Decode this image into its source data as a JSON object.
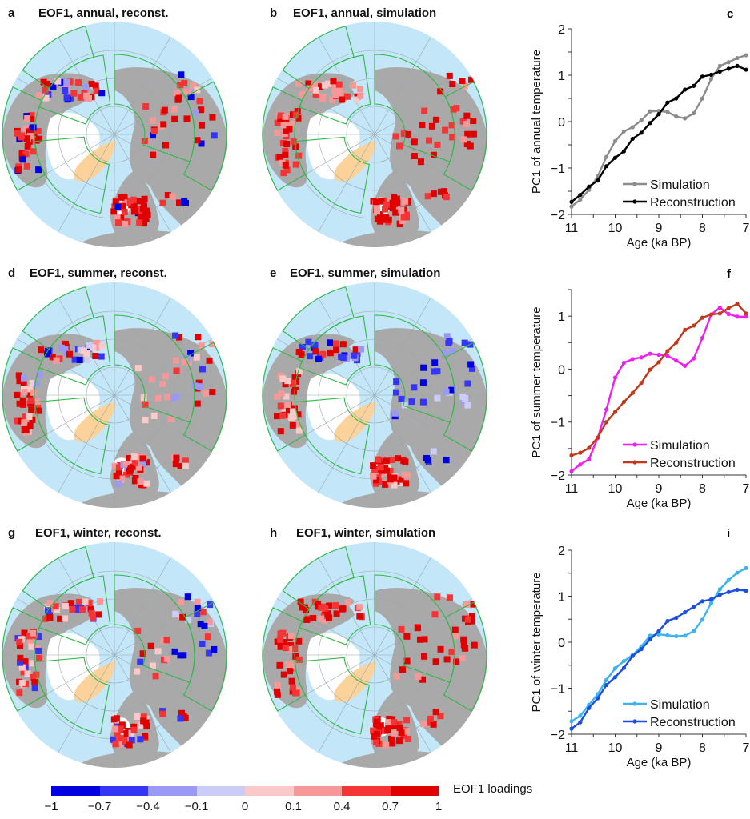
{
  "maps": [
    {
      "letter": "a",
      "title": "EOF1, annual, reconst.",
      "scheme": "annual_reconst"
    },
    {
      "letter": "b",
      "title": "EOF1, annual, simulation",
      "scheme": "annual_sim"
    },
    {
      "letter": "d",
      "title": "EOF1, summer, reconst.",
      "scheme": "summer_reconst"
    },
    {
      "letter": "e",
      "title": "EOF1, summer, simulation",
      "scheme": "summer_sim"
    },
    {
      "letter": "g",
      "title": "EOF1, winter, reconst.",
      "scheme": "winter_reconst"
    },
    {
      "letter": "h",
      "title": "EOF1, winter, simulation",
      "scheme": "winter_sim"
    }
  ],
  "map_colors": {
    "ocean": "#c3e6f8",
    "land": "#a9a9a9",
    "ice": "#ffffff",
    "ice_orange": "#fbd39a",
    "sector_outline": "#2fb844",
    "graticule": "#9aa7ae"
  },
  "colorbar": {
    "label": "EOF1 loadings",
    "ticks": [
      "−1",
      "−0.7",
      "−0.4",
      "−0.1",
      "0",
      "0.1",
      "0.4",
      "0.7",
      "1"
    ],
    "colors": [
      "#0000e0",
      "#3535f5",
      "#9a9af5",
      "#ccccf8",
      "#fbc9c9",
      "#f79898",
      "#f53535",
      "#e10000"
    ]
  },
  "chart_data": [
    {
      "letter": "c",
      "type": "line",
      "title": "",
      "xlabel": "Age (ka BP)",
      "ylabel": "PC1 of annual temperature",
      "xlim": [
        11,
        7
      ],
      "ylim": [
        -2,
        2
      ],
      "xticks": [
        "11",
        "10",
        "9",
        "8",
        "7"
      ],
      "yticks": [
        "−2",
        "−1",
        "0",
        "1",
        "2"
      ],
      "ytick_values": [
        -2,
        -1,
        0,
        1,
        2
      ],
      "legend": "bottom-right",
      "x": [
        11,
        10.8,
        10.6,
        10.4,
        10.2,
        10,
        9.8,
        9.6,
        9.4,
        9.2,
        9,
        8.8,
        8.6,
        8.4,
        8.2,
        8,
        7.8,
        7.6,
        7.4,
        7.2,
        7
      ],
      "series": [
        {
          "name": "Simulation",
          "color": "#8c8c8c",
          "values": [
            -1.83,
            -1.68,
            -1.47,
            -1.18,
            -0.76,
            -0.42,
            -0.21,
            -0.12,
            0.03,
            0.22,
            0.23,
            0.21,
            0.11,
            0.07,
            0.18,
            0.5,
            0.92,
            1.2,
            1.28,
            1.37,
            1.43
          ]
        },
        {
          "name": "Reconstruction",
          "color": "#000000",
          "values": [
            -1.73,
            -1.58,
            -1.4,
            -1.27,
            -0.96,
            -0.78,
            -0.64,
            -0.37,
            -0.24,
            -0.03,
            0.16,
            0.41,
            0.5,
            0.69,
            0.77,
            0.97,
            1.01,
            1.08,
            1.14,
            1.2,
            1.12
          ]
        }
      ]
    },
    {
      "letter": "f",
      "type": "line",
      "title": "",
      "xlabel": "Age (ka BP)",
      "ylabel": "PC1 of summer temperature",
      "xlim": [
        11,
        7
      ],
      "ylim": [
        -2,
        1.5
      ],
      "xticks": [
        "11",
        "10",
        "9",
        "8",
        "7"
      ],
      "yticks": [
        "−2",
        "−1",
        "0",
        "1"
      ],
      "ytick_values": [
        -2,
        -1,
        0,
        1
      ],
      "legend": "bottom-right",
      "x": [
        11,
        10.8,
        10.6,
        10.4,
        10.2,
        10,
        9.8,
        9.6,
        9.4,
        9.2,
        9,
        8.8,
        8.6,
        8.4,
        8.2,
        8,
        7.8,
        7.6,
        7.4,
        7.2,
        7
      ],
      "series": [
        {
          "name": "Simulation",
          "color": "#f01ef0",
          "values": [
            -1.93,
            -1.8,
            -1.7,
            -1.3,
            -0.76,
            -0.16,
            0.12,
            0.19,
            0.22,
            0.29,
            0.27,
            0.25,
            0.16,
            0.06,
            0.2,
            0.59,
            1.03,
            1.16,
            1.04,
            0.99,
            0.99
          ]
        },
        {
          "name": "Reconstruction",
          "color": "#c0391b",
          "values": [
            -1.63,
            -1.58,
            -1.49,
            -1.29,
            -1.0,
            -0.81,
            -0.62,
            -0.45,
            -0.26,
            -0.01,
            0.13,
            0.34,
            0.5,
            0.74,
            0.82,
            0.97,
            1.03,
            1.05,
            1.15,
            1.23,
            1.05
          ]
        }
      ]
    },
    {
      "letter": "i",
      "type": "line",
      "title": "",
      "xlabel": "Age (ka BP)",
      "ylabel": "PC1 of winter temperature",
      "xlim": [
        11,
        7
      ],
      "ylim": [
        -2,
        2
      ],
      "xticks": [
        "11",
        "10",
        "9",
        "8",
        "7"
      ],
      "yticks": [
        "−2",
        "−1",
        "0",
        "1",
        "2"
      ],
      "ytick_values": [
        -2,
        -1,
        0,
        1,
        2
      ],
      "legend": "bottom-right",
      "x": [
        11,
        10.8,
        10.6,
        10.4,
        10.2,
        10,
        9.8,
        9.6,
        9.4,
        9.2,
        9,
        8.8,
        8.6,
        8.4,
        8.2,
        8,
        7.8,
        7.6,
        7.4,
        7.2,
        7
      ],
      "series": [
        {
          "name": "Simulation",
          "color": "#3cb4ee",
          "values": [
            -1.72,
            -1.6,
            -1.36,
            -1.13,
            -0.82,
            -0.57,
            -0.41,
            -0.28,
            -0.09,
            0.14,
            0.17,
            0.15,
            0.13,
            0.14,
            0.24,
            0.49,
            0.85,
            1.15,
            1.35,
            1.51,
            1.61
          ]
        },
        {
          "name": "Reconstruction",
          "color": "#1a4fe0",
          "values": [
            -1.88,
            -1.74,
            -1.43,
            -1.22,
            -0.93,
            -0.76,
            -0.56,
            -0.3,
            -0.15,
            0.06,
            0.24,
            0.46,
            0.53,
            0.65,
            0.77,
            0.89,
            0.93,
            1.03,
            1.09,
            1.14,
            1.12
          ]
        }
      ]
    }
  ]
}
